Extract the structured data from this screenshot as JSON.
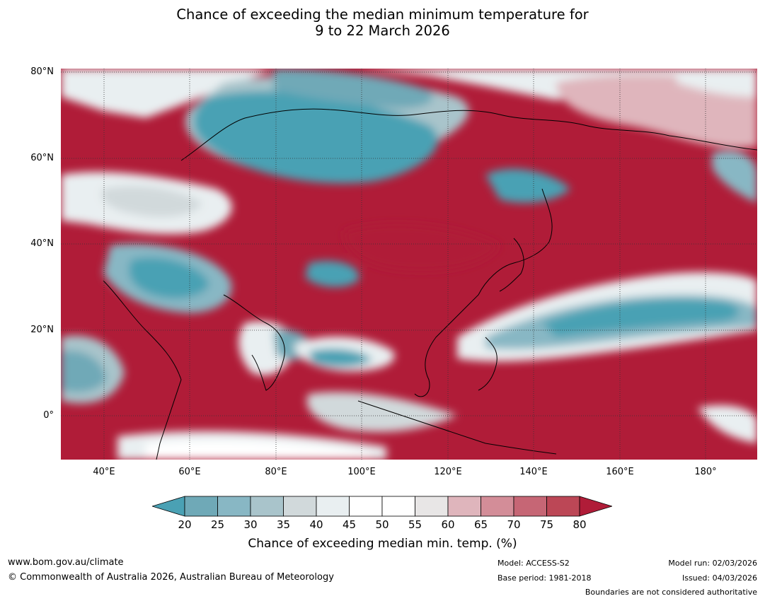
{
  "title": {
    "line1": "Chance of exceeding the median minimum temperature for",
    "line2": "9 to 22 March 2026"
  },
  "map": {
    "lat_labels": [
      "80°N",
      "60°N",
      "40°N",
      "20°N",
      "0°"
    ],
    "lon_labels": [
      "40°E",
      "60°E",
      "80°E",
      "100°E",
      "120°E",
      "140°E",
      "160°E",
      "180°"
    ],
    "extent": {
      "lon": [
        30,
        192
      ],
      "lat": [
        -10,
        81
      ]
    }
  },
  "colorbar": {
    "ticks": [
      "20",
      "25",
      "30",
      "35",
      "40",
      "45",
      "50",
      "55",
      "60",
      "65",
      "70",
      "75",
      "80"
    ],
    "colors": [
      "#4aa1b4",
      "#6fa9b7",
      "#88b7c4",
      "#a9c4cb",
      "#d1d9db",
      "#e9eff1",
      "#ffffff",
      "#ffffff",
      "#e8e6e6",
      "#dfb5bc",
      "#d38d98",
      "#c66675",
      "#bc4756",
      "#b01c38"
    ],
    "label": "Chance of exceeding median min. temp. (%)"
  },
  "footer": {
    "url": "www.bom.gov.au/climate",
    "copyright": "© Commonwealth of Australia 2026, Australian Bureau of Meteorology",
    "model": "Model: ACCESS-S2",
    "base_period": "Base period: 1981-2018",
    "model_run": "Model run: 02/03/2026",
    "issued": "Issued: 04/03/2026",
    "disclaimer": "Boundaries are not considered authoritative"
  }
}
